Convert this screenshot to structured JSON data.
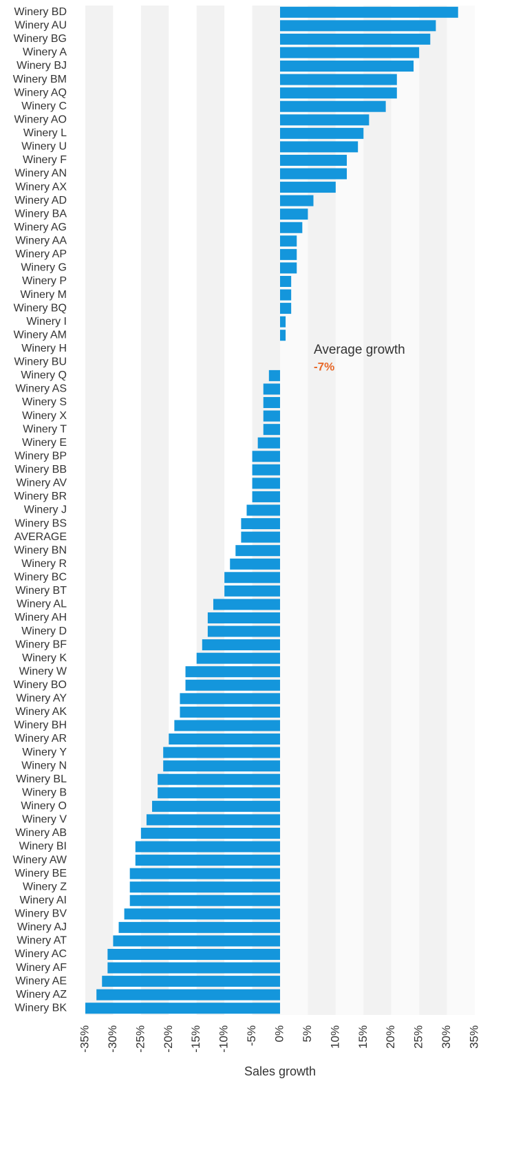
{
  "chart_data": {
    "type": "barh",
    "categories": [
      "Winery BD",
      "Winery AU",
      "Winery BG",
      "Winery A",
      "Winery BJ",
      "Winery BM",
      "Winery AQ",
      "Winery C",
      "Winery AO",
      "Winery L",
      "Winery U",
      "Winery F",
      "Winery AN",
      "Winery AX",
      "Winery AD",
      "Winery BA",
      "Winery AG",
      "Winery AA",
      "Winery AP",
      "Winery G",
      "Winery P",
      "Winery M",
      "Winery BQ",
      "Winery I",
      "Winery AM",
      "Winery H",
      "Winery BU",
      "Winery Q",
      "Winery AS",
      "Winery S",
      "Winery X",
      "Winery T",
      "Winery E",
      "Winery BP",
      "Winery BB",
      "Winery AV",
      "Winery BR",
      "Winery J",
      "Winery BS",
      "AVERAGE",
      "Winery BN",
      "Winery R",
      "Winery BC",
      "Winery BT",
      "Winery AL",
      "Winery AH",
      "Winery D",
      "Winery BF",
      "Winery K",
      "Winery W",
      "Winery BO",
      "Winery AY",
      "Winery AK",
      "Winery BH",
      "Winery AR",
      "Winery Y",
      "Winery N",
      "Winery BL",
      "Winery B",
      "Winery O",
      "Winery V",
      "Winery AB",
      "Winery BI",
      "Winery AW",
      "Winery BE",
      "Winery Z",
      "Winery AI",
      "Winery BV",
      "Winery AJ",
      "Winery AT",
      "Winery AC",
      "Winery AF",
      "Winery AE",
      "Winery AZ",
      "Winery BK"
    ],
    "values": [
      32,
      28,
      27,
      25,
      24,
      21,
      21,
      19,
      16,
      15,
      14,
      12,
      12,
      10,
      6,
      5,
      4,
      3,
      3,
      3,
      2,
      2,
      2,
      1,
      1,
      0,
      0,
      -2,
      -3,
      -3,
      -3,
      -3,
      -4,
      -5,
      -5,
      -5,
      -5,
      -6,
      -7,
      -7,
      -8,
      -9,
      -10,
      -10,
      -12,
      -13,
      -13,
      -14,
      -15,
      -17,
      -17,
      -18,
      -18,
      -19,
      -20,
      -21,
      -21,
      -22,
      -22,
      -23,
      -24,
      -25,
      -26,
      -26,
      -27,
      -27,
      -27,
      -28,
      -29,
      -30,
      -31,
      -31,
      -32,
      -33,
      -35
    ],
    "color": "#1496dc",
    "xlim": [
      -35,
      35
    ],
    "xticks": [
      {
        "value": -35,
        "label": "-35%"
      },
      {
        "value": -30,
        "label": "-30%"
      },
      {
        "value": -25,
        "label": "-25%"
      },
      {
        "value": -20,
        "label": "-20%"
      },
      {
        "value": -15,
        "label": "-15%"
      },
      {
        "value": -10,
        "label": "-10%"
      },
      {
        "value": -5,
        "label": "-5%"
      },
      {
        "value": 0,
        "label": "0%"
      },
      {
        "value": 5,
        "label": "5%"
      },
      {
        "value": 10,
        "label": "10%"
      },
      {
        "value": 15,
        "label": "15%"
      },
      {
        "value": 20,
        "label": "20%"
      },
      {
        "value": 25,
        "label": "25%"
      },
      {
        "value": 30,
        "label": "30%"
      },
      {
        "value": 35,
        "label": "35%"
      }
    ],
    "xlabel": "Sales growth",
    "annotation": {
      "text": "Average growth",
      "value_label": "-7%"
    },
    "grid": true
  }
}
